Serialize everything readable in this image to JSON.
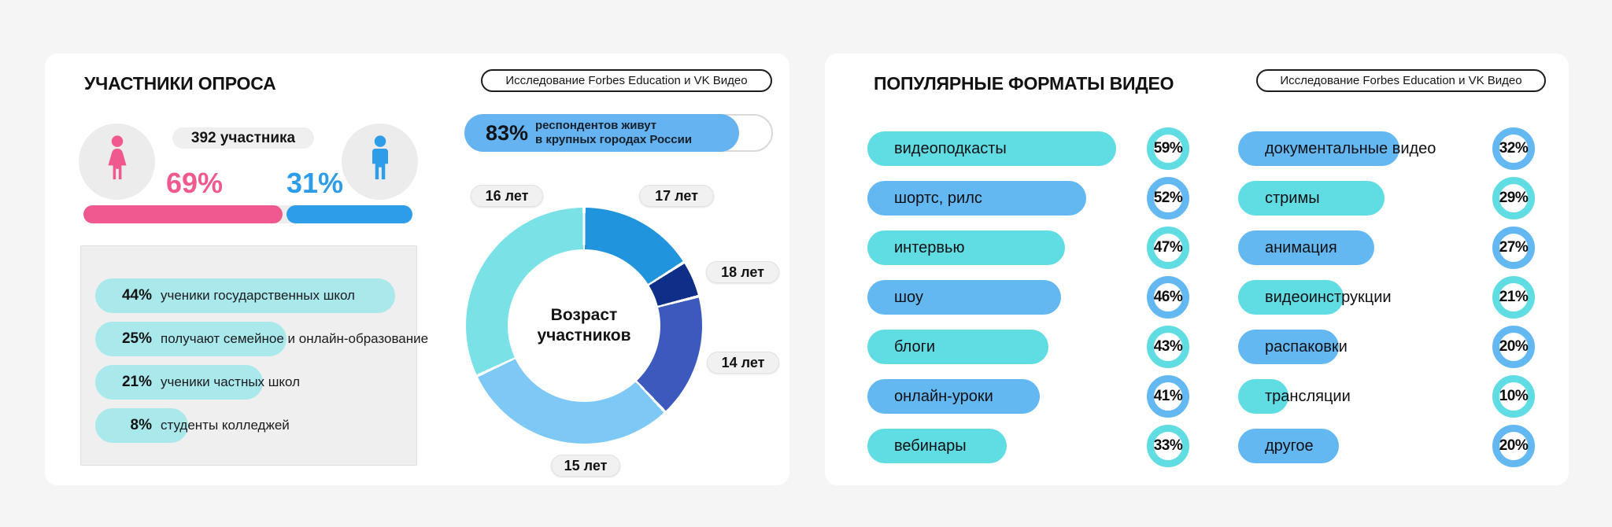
{
  "theme": {
    "pink": "#f0598f",
    "male_blue": "#2d9ce9",
    "format_teal": "#5fdde2",
    "format_blue": "#64b8f2",
    "stat_pill_teal": "#a9e9ec",
    "city_fill_blue": "#66b3f1",
    "background": "#f5f5f6"
  },
  "left_panel": {
    "title": "УЧАСТНИКИ ОПРОСА",
    "badge": "Исследование Forbes Education и VK Видео",
    "gender": {
      "total": "392 участника",
      "female_pct": "69%",
      "male_pct": "31%"
    },
    "education_stats": [
      {
        "pct": 44,
        "pct_label": "44%",
        "label": "ученики государственных школ"
      },
      {
        "pct": 25,
        "pct_label": "25%",
        "label": "получают семейное и онлайн-образование"
      },
      {
        "pct": 21,
        "pct_label": "21%",
        "label": "ученики частных школ"
      },
      {
        "pct": 8,
        "pct_label": "8%",
        "label": "студенты колледжей"
      }
    ],
    "city": {
      "pct": 83,
      "pct_label": "83%",
      "line1": "респондентов живут",
      "line2": "в крупных городах России"
    },
    "donut": {
      "center_line1": "Возраст",
      "center_line2": "участников",
      "segments": [
        {
          "label": "17 лет",
          "value": 16,
          "color": "#2095dd"
        },
        {
          "label": "18 лет",
          "value": 5,
          "color": "#0e2e87"
        },
        {
          "label": "14 лет",
          "value": 17,
          "color": "#3c59bd"
        },
        {
          "label": "15 лет",
          "value": 30,
          "color": "#7ec8f5"
        },
        {
          "label": "16 лет",
          "value": 32,
          "color": "#7ae2e7"
        }
      ]
    }
  },
  "right_panel": {
    "title": "ПОПУЛЯРНЫЕ ФОРМАТЫ ВИДЕО",
    "badge": "Исследование Forbes Education и VK Видео",
    "columns": {
      "left": [
        {
          "label": "видеоподкасты",
          "pct": 59,
          "pct_label": "59%",
          "color": "teal"
        },
        {
          "label": "шортс, рилс",
          "pct": 52,
          "pct_label": "52%",
          "color": "blue"
        },
        {
          "label": "интервью",
          "pct": 47,
          "pct_label": "47%",
          "color": "teal"
        },
        {
          "label": "шоу",
          "pct": 46,
          "pct_label": "46%",
          "color": "blue"
        },
        {
          "label": "блоги",
          "pct": 43,
          "pct_label": "43%",
          "color": "teal"
        },
        {
          "label": "онлайн-уроки",
          "pct": 41,
          "pct_label": "41%",
          "color": "blue"
        },
        {
          "label": "вебинары",
          "pct": 33,
          "pct_label": "33%",
          "color": "teal"
        }
      ],
      "right": [
        {
          "label": "документальные видео",
          "pct": 32,
          "pct_label": "32%",
          "color": "blue"
        },
        {
          "label": "стримы",
          "pct": 29,
          "pct_label": "29%",
          "color": "teal"
        },
        {
          "label": "анимация",
          "pct": 27,
          "pct_label": "27%",
          "color": "blue"
        },
        {
          "label": "видеоинструкции",
          "pct": 21,
          "pct_label": "21%",
          "color": "teal"
        },
        {
          "label": "распаковки",
          "pct": 20,
          "pct_label": "20%",
          "color": "blue"
        },
        {
          "label": "трансляции",
          "pct": 10,
          "pct_label": "10%",
          "color": "teal"
        },
        {
          "label": "другое",
          "pct": 20,
          "pct_label": "20%",
          "color": "blue"
        }
      ]
    }
  },
  "chart_data": [
    {
      "type": "bar",
      "title": "УЧАСТНИКИ ОПРОСА — пол",
      "categories": [
        "женщины",
        "мужчины"
      ],
      "values": [
        69,
        31
      ],
      "unit": "%",
      "annotation": "392 участника",
      "colors": [
        "#f0598f",
        "#2d9ce9"
      ]
    },
    {
      "type": "bar",
      "title": "Форма обучения участников",
      "categories": [
        "ученики государственных школ",
        "получают семейное и онлайн-образование",
        "ученики частных школ",
        "студенты колледжей"
      ],
      "values": [
        44,
        25,
        21,
        8
      ],
      "unit": "%"
    },
    {
      "type": "bar",
      "title": "География",
      "categories": [
        "респондентов живут в крупных городах России"
      ],
      "values": [
        83
      ],
      "unit": "%"
    },
    {
      "type": "pie",
      "title": "Возраст участников",
      "categories": [
        "17 лет",
        "18 лет",
        "14 лет",
        "15 лет",
        "16 лет"
      ],
      "values": [
        16,
        5,
        17,
        30,
        32
      ],
      "unit": "%",
      "estimated_from_arc_angles": true,
      "colors": [
        "#2095dd",
        "#0e2e87",
        "#3c59bd",
        "#7ec8f5",
        "#7ae2e7"
      ]
    },
    {
      "type": "bar",
      "title": "ПОПУЛЯРНЫЕ ФОРМАТЫ ВИДЕО",
      "categories": [
        "видеоподкасты",
        "шортс, рилс",
        "интервью",
        "шоу",
        "блоги",
        "онлайн-уроки",
        "вебинары",
        "документальные видео",
        "стримы",
        "анимация",
        "видеоинструкции",
        "распаковки",
        "трансляции",
        "другое"
      ],
      "values": [
        59,
        52,
        47,
        46,
        43,
        41,
        33,
        32,
        29,
        27,
        21,
        20,
        10,
        20
      ],
      "unit": "%"
    }
  ]
}
